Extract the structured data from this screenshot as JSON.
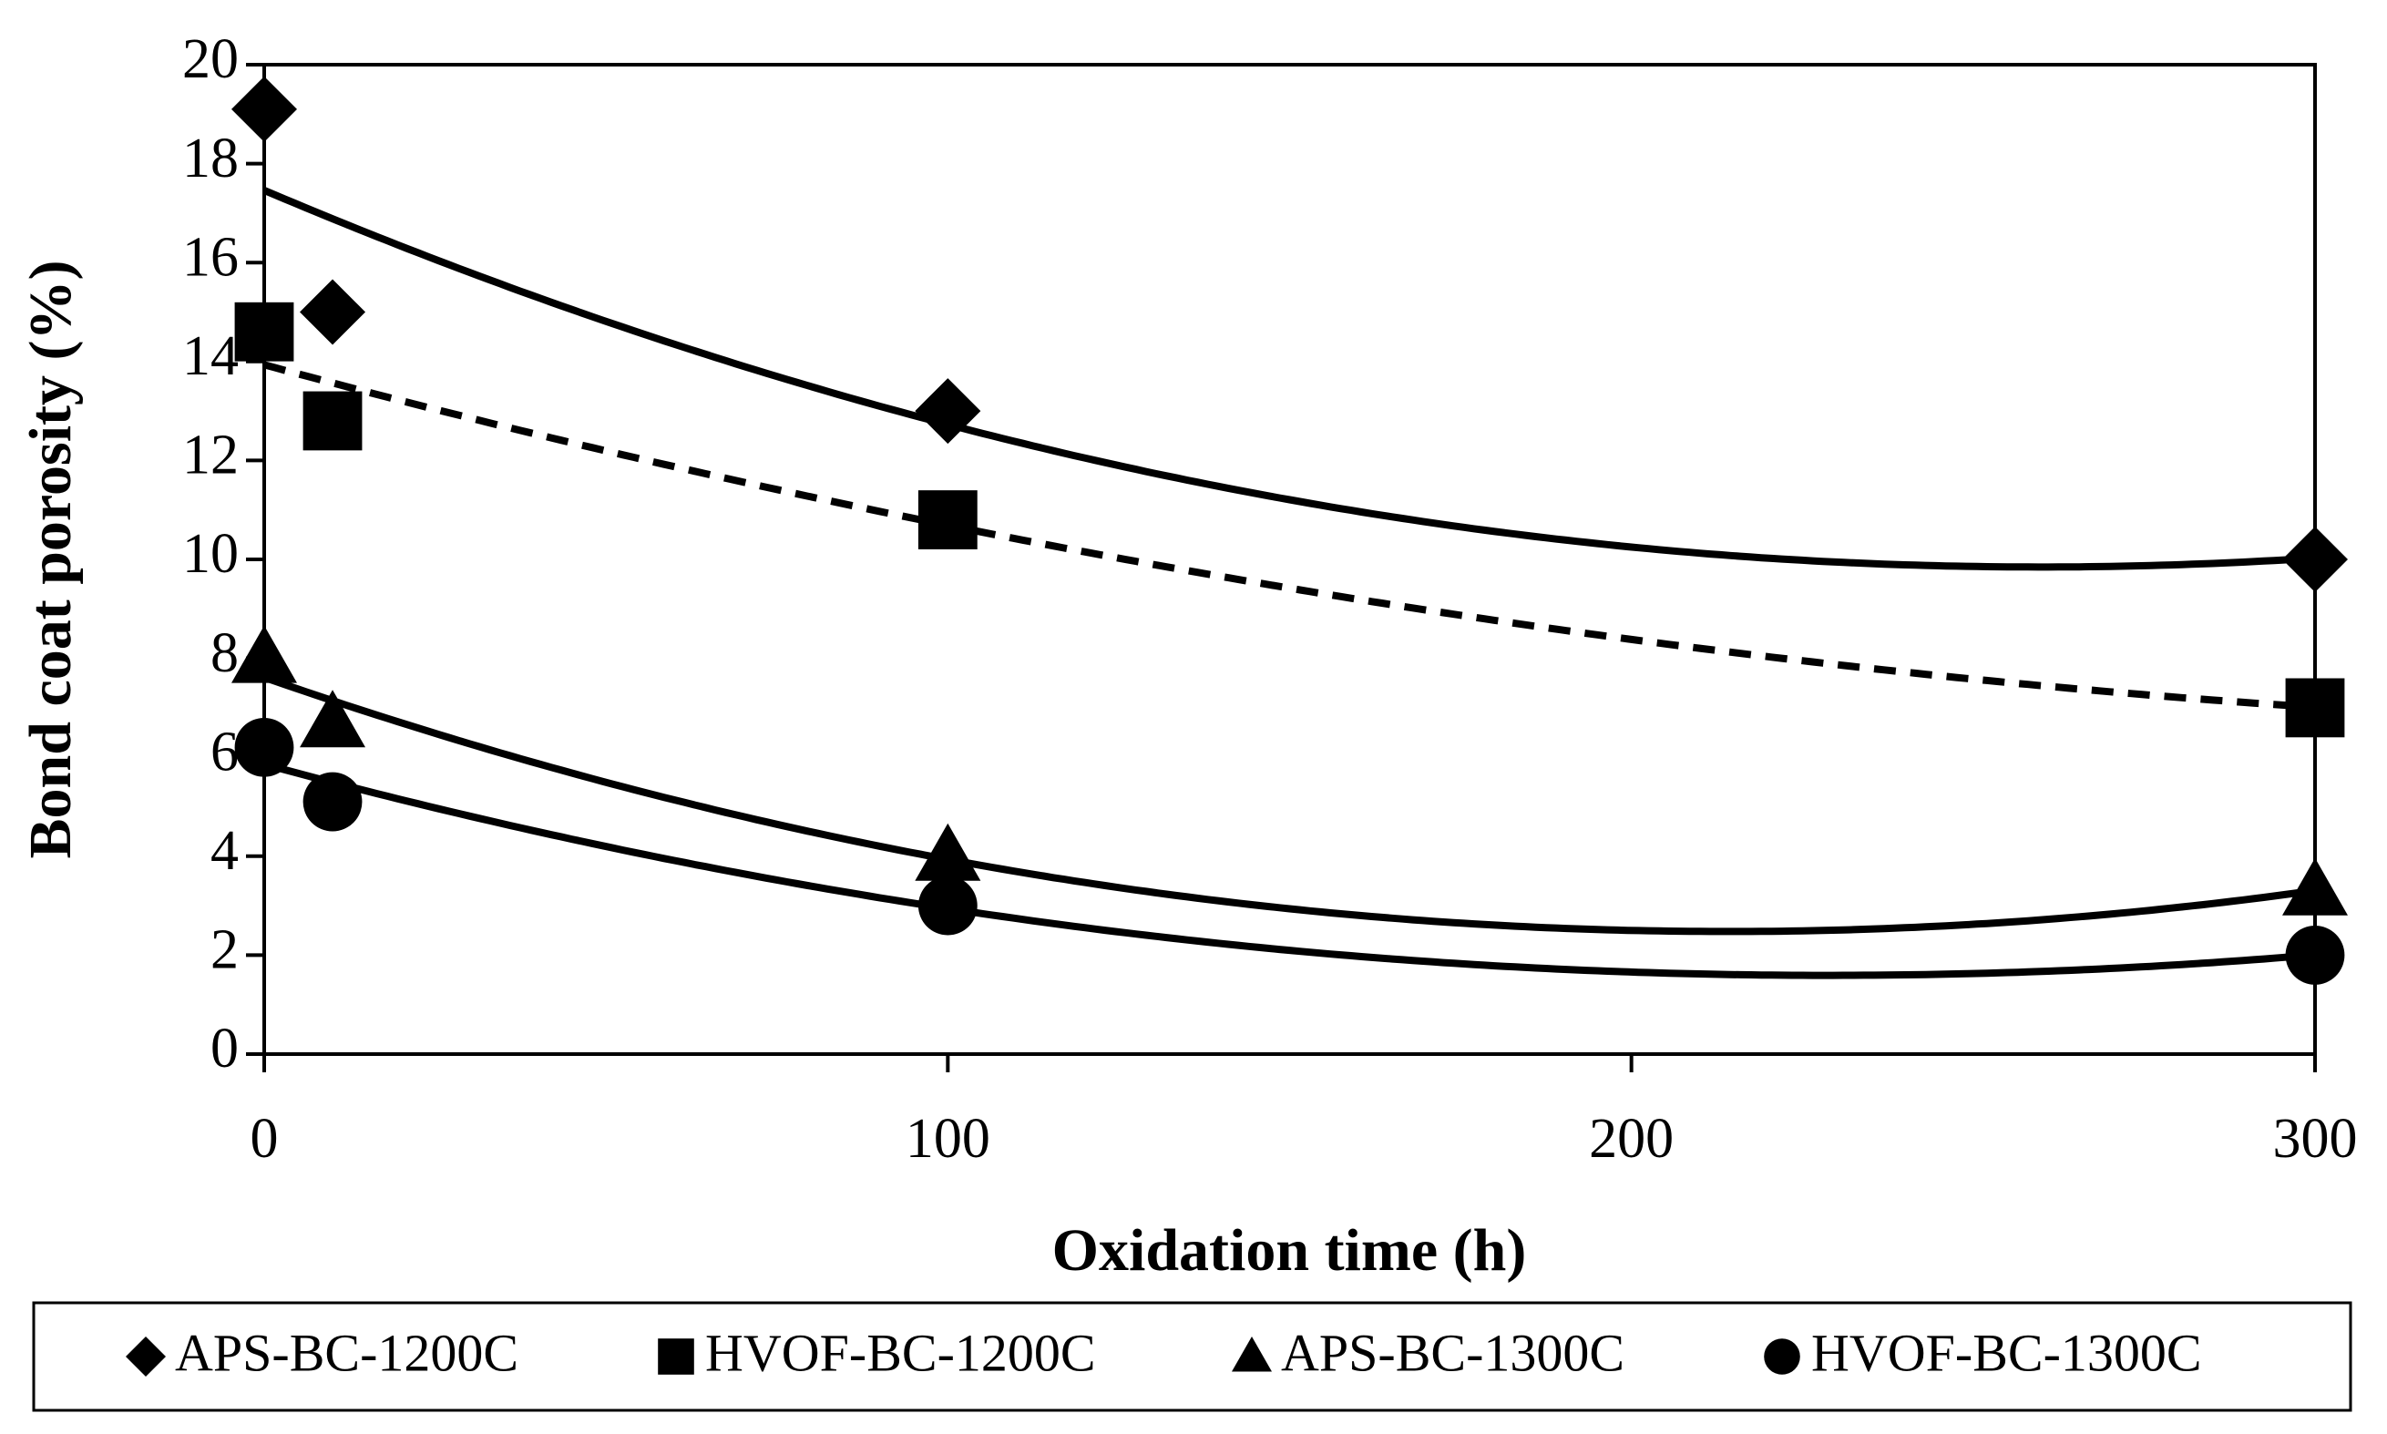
{
  "chart_data": {
    "type": "scatter",
    "x_label": "Oxidation time (h)",
    "y_label": "Bond coat porosity (%)",
    "xlim": [
      0,
      300
    ],
    "xticks": [
      0,
      100,
      200,
      300
    ],
    "ylim": [
      0,
      20
    ],
    "yticks": [
      0,
      2,
      4,
      6,
      8,
      10,
      12,
      14,
      16,
      18,
      20
    ],
    "trendline": "polynomial-2",
    "series": [
      {
        "name": "APS-BC-1200C",
        "color": "#000000",
        "marker": "diamond",
        "line_style": "solid",
        "x": [
          0,
          10,
          100,
          300
        ],
        "values": [
          19.1,
          15,
          13,
          10
        ]
      },
      {
        "name": "HVOF-BC-1200C",
        "color": "#000000",
        "marker": "square",
        "line_style": "dashed",
        "x": [
          0,
          10,
          100,
          300
        ],
        "values": [
          14.6,
          12.8,
          10.8,
          7
        ]
      },
      {
        "name": "APS-BC-1300C",
        "color": "#000000",
        "marker": "triangle",
        "line_style": "solid",
        "x": [
          0,
          10,
          100,
          300
        ],
        "values": [
          8,
          6.7,
          4,
          3.3
        ]
      },
      {
        "name": "HVOF-BC-1300C",
        "color": "#000000",
        "marker": "circle",
        "line_style": "solid",
        "x": [
          0,
          10,
          100,
          300
        ],
        "values": [
          6.2,
          5.1,
          3,
          2
        ]
      }
    ]
  }
}
